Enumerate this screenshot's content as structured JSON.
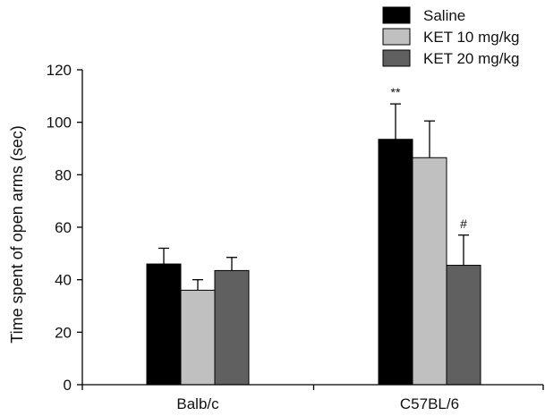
{
  "chart_data": {
    "type": "bar",
    "ylabel": "Time spent of open arms (sec)",
    "xlabel": "",
    "ylim": [
      0,
      120
    ],
    "yticks": [
      0,
      20,
      40,
      60,
      80,
      100,
      120
    ],
    "categories": [
      "Balb/c",
      "C57BL/6"
    ],
    "series": [
      {
        "name": "Saline",
        "color": "#000000",
        "values": [
          46,
          93.5
        ],
        "errors": [
          6,
          13.5
        ]
      },
      {
        "name": "KET 10 mg/kg",
        "color": "#c0c0c0",
        "values": [
          36,
          86.5
        ],
        "errors": [
          4,
          14
        ]
      },
      {
        "name": "KET 20 mg/kg",
        "color": "#606060",
        "values": [
          43.5,
          45.5
        ],
        "errors": [
          5,
          11.5
        ]
      }
    ],
    "annotations": [
      {
        "text": "**",
        "category": "C57BL/6",
        "series": "Saline"
      },
      {
        "text": "#",
        "category": "C57BL/6",
        "series": "KET 20 mg/kg"
      }
    ],
    "legend_position": "top-right",
    "grid": false
  }
}
